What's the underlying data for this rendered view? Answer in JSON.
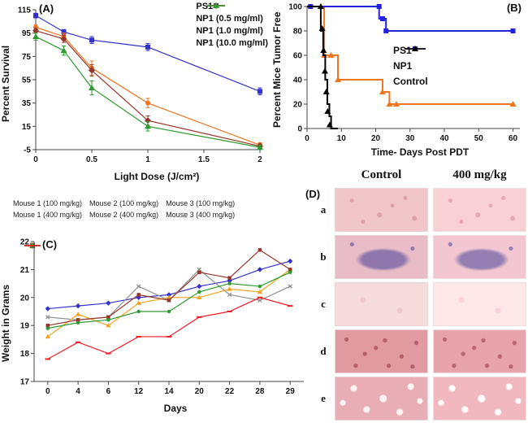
{
  "figure": {
    "panel_a_label": "(A)",
    "panel_b_label": "(B)",
    "panel_c_label": "(C)",
    "panel_d_label": "(D)"
  },
  "panel_d": {
    "columns": [
      "Control",
      "400 mg/kg"
    ],
    "rows": [
      {
        "label": "a",
        "texture": "speckle",
        "base": "#f0c6c9",
        "accent": "#df9fa8"
      },
      {
        "label": "b",
        "texture": "blob",
        "base": "#e9bdc7",
        "accent": "#8f77ad"
      },
      {
        "label": "c",
        "texture": "plain",
        "base": "#f7dcdc",
        "accent": "#efc9cb"
      },
      {
        "label": "d",
        "texture": "dense",
        "base": "#e29aa1",
        "accent": "#b55f6e"
      },
      {
        "label": "e",
        "texture": "holes",
        "base": "#e9aeb5",
        "accent": "#fdf3f3"
      }
    ]
  },
  "chart_data": [
    {
      "id": "panelA",
      "type": "line",
      "title": "",
      "xlabel": "Light Dose (J/cm²)",
      "ylabel": "Percent Survival",
      "xlim": [
        0,
        2
      ],
      "ylim": [
        -5,
        115
      ],
      "xticks": [
        0,
        0.5,
        1,
        1.5,
        2
      ],
      "yticks": [
        -5,
        15,
        35,
        55,
        75,
        95,
        115
      ],
      "x": [
        0,
        0.25,
        0.5,
        1,
        2
      ],
      "legend_position": "top-right",
      "grid": false,
      "series": [
        {
          "name": "PS1",
          "color": "#3333cc",
          "marker": "square",
          "values": [
            110,
            96,
            89,
            83,
            45
          ],
          "err": [
            2,
            2,
            3,
            3,
            3
          ]
        },
        {
          "name": "NP1 (0.5 mg/ml)",
          "color": "#ee7520",
          "marker": "circle",
          "values": [
            100,
            92,
            65,
            35,
            -1
          ],
          "err": [
            2,
            3,
            6,
            4,
            2
          ]
        },
        {
          "name": "NP1 (1.0 mg/ml)",
          "color": "#97352b",
          "marker": "diamond",
          "values": [
            97,
            90,
            63,
            20,
            -2
          ],
          "err": [
            2,
            3,
            5,
            4,
            2
          ]
        },
        {
          "name": "NP1 (10.0 mg/ml)",
          "color": "#2e9b2e",
          "marker": "triangle",
          "values": [
            92,
            80,
            48,
            15,
            -3
          ],
          "err": [
            3,
            4,
            6,
            4,
            2
          ]
        }
      ]
    },
    {
      "id": "panelB",
      "type": "step",
      "title": "",
      "xlabel": "Time- Days Post PDT",
      "ylabel": "Percent Mice Tumor Free",
      "xlim": [
        0,
        62
      ],
      "ylim": [
        0,
        100
      ],
      "xticks": [
        0,
        10,
        20,
        30,
        40,
        50,
        60
      ],
      "yticks": [
        0,
        20,
        40,
        60,
        80,
        100
      ],
      "legend_position": "middle-right",
      "grid": false,
      "series": [
        {
          "name": "PS1",
          "color": "#ee7520",
          "marker": "triangle",
          "points": [
            [
              0,
              100
            ],
            [
              5,
              100
            ],
            [
              5,
              60
            ],
            [
              9,
              60
            ],
            [
              9,
              40
            ],
            [
              22,
              40
            ],
            [
              22,
              30
            ],
            [
              24,
              30
            ],
            [
              24,
              20
            ],
            [
              60,
              20
            ]
          ],
          "markers": [
            [
              5,
              60
            ],
            [
              7,
              60
            ],
            [
              9,
              40
            ],
            [
              22,
              30
            ],
            [
              24,
              20
            ],
            [
              26,
              20
            ],
            [
              60,
              20
            ]
          ]
        },
        {
          "name": "NP1",
          "color": "#2222dd",
          "marker": "square",
          "points": [
            [
              0,
              100
            ],
            [
              21,
              100
            ],
            [
              21,
              90
            ],
            [
              23,
              90
            ],
            [
              23,
              80
            ],
            [
              60,
              80
            ]
          ],
          "markers": [
            [
              1,
              100
            ],
            [
              21,
              100
            ],
            [
              22,
              90
            ],
            [
              23,
              80
            ],
            [
              60,
              80
            ]
          ]
        },
        {
          "name": "Control",
          "color": "#000000",
          "marker": "triangle",
          "points": [
            [
              0,
              100
            ],
            [
              4,
              100
            ],
            [
              4,
              80
            ],
            [
              4.7,
              80
            ],
            [
              4.7,
              60
            ],
            [
              5.3,
              60
            ],
            [
              5.3,
              40
            ],
            [
              5.9,
              40
            ],
            [
              5.9,
              20
            ],
            [
              6.5,
              20
            ],
            [
              6.5,
              10
            ],
            [
              7,
              10
            ],
            [
              7,
              0
            ],
            [
              9,
              0
            ]
          ],
          "markers": [
            [
              4,
              100
            ],
            [
              4.4,
              82
            ],
            [
              4.8,
              64
            ],
            [
              5.2,
              47
            ],
            [
              5.6,
              30
            ],
            [
              6,
              14
            ],
            [
              6.6,
              3
            ]
          ]
        }
      ]
    },
    {
      "id": "panelC",
      "type": "line-category",
      "title": "",
      "xlabel": "Days",
      "ylabel": "Weight in Grams",
      "categories": [
        "0",
        "4",
        "6",
        "12",
        "14",
        "20",
        "22",
        "28",
        "29"
      ],
      "ylim": [
        17,
        22
      ],
      "yticks": [
        17,
        18,
        19,
        20,
        21,
        22
      ],
      "legend_position": "top",
      "grid": false,
      "series": [
        {
          "name": "Mouse 1 (100 mg/kg)",
          "color": "#3333cc",
          "marker": "diamond",
          "values": [
            19.6,
            19.7,
            19.8,
            20.0,
            20.1,
            20.4,
            20.6,
            21.0,
            21.3
          ]
        },
        {
          "name": "Mouse 2 (100 mg/kg)",
          "color": "#909090",
          "marker": "x",
          "values": [
            19.3,
            19.2,
            19.3,
            20.4,
            19.9,
            21.0,
            20.1,
            19.9,
            20.4
          ]
        },
        {
          "name": "Mouse 3 (100 mg/kg)",
          "color": "#f6a21d",
          "marker": "triangle",
          "values": [
            18.6,
            19.4,
            19.0,
            19.8,
            20.0,
            20.0,
            20.3,
            20.2,
            21.0
          ]
        },
        {
          "name": "Mouse 1 (400 mg/kg)",
          "color": "#97352b",
          "marker": "square",
          "values": [
            19.0,
            19.2,
            19.3,
            20.1,
            19.9,
            20.9,
            20.7,
            21.7,
            21.0
          ]
        },
        {
          "name": "Mouse 2 (400 mg/kg)",
          "color": "#2e9b2e",
          "marker": "circle",
          "values": [
            18.9,
            19.1,
            19.2,
            19.5,
            19.5,
            20.2,
            20.5,
            20.4,
            20.9
          ]
        },
        {
          "name": "Mouse 3 (400 mg/kg)",
          "color": "#ee1c25",
          "marker": "dash",
          "values": [
            17.8,
            18.4,
            18.0,
            18.6,
            18.6,
            19.3,
            19.5,
            20.0,
            19.7
          ]
        }
      ]
    }
  ]
}
